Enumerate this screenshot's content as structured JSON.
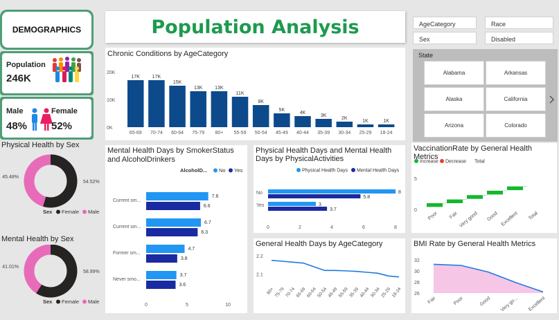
{
  "header": {
    "demographics": "DEMOGRAPHICS",
    "title": "Population Analysis"
  },
  "kpis": {
    "population_label": "Population",
    "population_value": "246K",
    "male_label": "Male",
    "male_value": "48%",
    "female_label": "Female",
    "female_value": "52%"
  },
  "slicers": {
    "age_category": "AgeCategory",
    "race": "Race",
    "sex": "Sex",
    "disabled": "Disabled",
    "state_title": "State",
    "states": [
      "Alabama",
      "Arkansas",
      "Alaska",
      "California",
      "Arizona",
      "Colorado"
    ]
  },
  "colors": {
    "navy": "#0d4a8c",
    "dark": "#252423",
    "pink": "#e86bb9",
    "green_frame": "#4f9e76",
    "title_green": "#1d9a4f",
    "light_blue": "#2196f3",
    "deep_blue": "#1a2aa0",
    "waterfall_green": "#13b82e",
    "waterfall_red": "#e8412f",
    "line_blue": "#1e78e0",
    "area_pink": "#f5c6e6"
  },
  "charts": {
    "chronic": {
      "title": "Chronic Conditions by AgeCategory",
      "chart_data": {
        "type": "bar",
        "categories": [
          "65-69",
          "70-74",
          "60-64",
          "75-79",
          "80+",
          "55-59",
          "50-54",
          "45-49",
          "40-44",
          "35-39",
          "30-34",
          "25-29",
          "18-24"
        ],
        "values": [
          17,
          17,
          15,
          13,
          13,
          11,
          8,
          5,
          4,
          3,
          2,
          1,
          1
        ],
        "labels": [
          "17K",
          "17K",
          "15K",
          "13K",
          "13K",
          "11K",
          "8K",
          "5K",
          "4K",
          "3K",
          "2K",
          "1K",
          "1K"
        ],
        "yticks": [
          "0K",
          "10K",
          "20K"
        ],
        "ylim": [
          0,
          20
        ]
      }
    },
    "physical_sex": {
      "title": "Physical Health by Sex",
      "chart_data": {
        "type": "pie",
        "series": [
          {
            "name": "Female",
            "value": 54.52
          },
          {
            "name": "Male",
            "value": 45.48
          }
        ],
        "labels": [
          "54.52%",
          "45.48%"
        ],
        "legend_title": "Sex"
      }
    },
    "mental_sex": {
      "title": "Mental Health by Sex",
      "chart_data": {
        "type": "pie",
        "series": [
          {
            "name": "Female",
            "value": 58.99
          },
          {
            "name": "Male",
            "value": 41.01
          }
        ],
        "labels": [
          "58.99%",
          "41.01%"
        ],
        "legend_title": "Sex"
      }
    },
    "smoker": {
      "title": "Mental Health Days by SmokerStatus and AlcoholDrinkers",
      "legend_title": "AlcoholD...",
      "chart_data": {
        "type": "bar",
        "categories": [
          "Current sm...",
          "Current sm...",
          "Former sm...",
          "Never smo..."
        ],
        "series": [
          {
            "name": "No",
            "values": [
              7.6,
              6.7,
              4.7,
              3.7
            ],
            "labels": [
              "7.6",
              "6.7",
              "4.7",
              "3.7"
            ]
          },
          {
            "name": "Yes",
            "values": [
              6.6,
              6.3,
              3.8,
              3.6
            ],
            "labels": [
              "6.6",
              "6.3",
              "3.8",
              "3.6"
            ]
          }
        ],
        "xticks": [
          "0",
          "5",
          "10"
        ],
        "xlim": [
          0,
          10
        ]
      }
    },
    "physical_activities": {
      "title": "Physical Health Days and Mental Health Days by PhysicalActivities",
      "chart_data": {
        "type": "bar",
        "categories": [
          "No",
          "Yes"
        ],
        "series": [
          {
            "name": "Physical Health Days",
            "values": [
              8,
              3
            ],
            "labels": [
              "8",
              "3"
            ]
          },
          {
            "name": "Mental Health Days",
            "values": [
              5.8,
              3.7
            ],
            "labels": [
              "5.8",
              "3.7"
            ]
          }
        ],
        "xticks": [
          "0",
          "2",
          "4",
          "6",
          "8"
        ],
        "xlim": [
          0,
          8
        ]
      }
    },
    "vaccination": {
      "title": "VaccinationRate by General Health Metrics",
      "legend": [
        "Increase",
        "Decrease",
        "Total"
      ],
      "chart_data": {
        "type": "bar",
        "categories": [
          "Poor",
          "Fair",
          "Very good",
          "Good",
          "Excellent",
          "Total"
        ],
        "steps": [
          [
            0.4,
            1.0
          ],
          [
            1.0,
            1.6
          ],
          [
            1.7,
            2.3
          ],
          [
            2.4,
            3.0
          ],
          [
            3.1,
            3.7
          ],
          [
            3.7,
            3.7
          ]
        ],
        "yticks": [
          "0",
          "5"
        ],
        "ylim": [
          0,
          5
        ]
      }
    },
    "general_health": {
      "title": "General Health Days by AgeCategory",
      "chart_data": {
        "type": "line",
        "x": [
          "80+",
          "75-79",
          "70-74",
          "65-69",
          "60-64",
          "50-54",
          "45-49",
          "55-59",
          "35-39",
          "40-44",
          "30-34",
          "25-29",
          "18-24"
        ],
        "values": [
          2.175,
          2.17,
          2.165,
          2.16,
          2.14,
          2.12,
          2.12,
          2.118,
          2.115,
          2.11,
          2.105,
          2.09,
          2.085
        ],
        "yticks": [
          "2.1",
          "2.2"
        ],
        "ylim": [
          2.05,
          2.2
        ]
      }
    },
    "bmi": {
      "title": "BMI Rate by General Health Metrics",
      "chart_data": {
        "type": "area",
        "x": [
          "Fair",
          "Poor",
          "Good",
          "Very go...",
          "Excellent"
        ],
        "values": [
          31.2,
          31.0,
          29.8,
          27.9,
          26.2
        ],
        "yticks": [
          "26",
          "28",
          "30",
          "32"
        ],
        "ylim": [
          26,
          32
        ]
      }
    }
  }
}
